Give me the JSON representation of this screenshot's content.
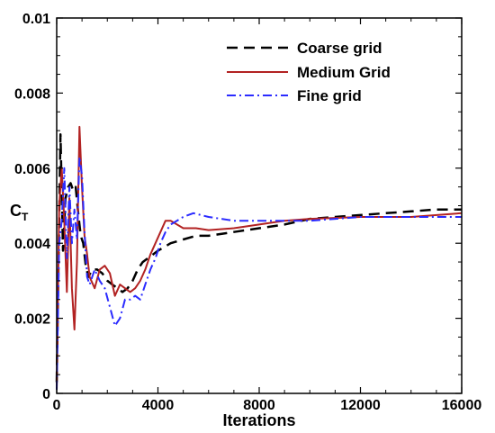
{
  "chart_data": {
    "type": "line",
    "title": "",
    "xlabel": "Iterations",
    "ylabel_main": "C",
    "ylabel_sub": "T",
    "xlim": [
      0,
      16000
    ],
    "ylim": [
      0,
      0.01
    ],
    "xticks": [
      0,
      4000,
      8000,
      12000,
      16000
    ],
    "xtick_labels": [
      "0",
      "4000",
      "8000",
      "12000",
      "16000"
    ],
    "yticks": [
      0,
      0.002,
      0.004,
      0.006,
      0.008,
      0.01
    ],
    "ytick_labels": [
      "0",
      "0.002",
      "0.004",
      "0.006",
      "0.008",
      "0.01"
    ],
    "grid": false,
    "legend_position": "top-right",
    "series": [
      {
        "name": "Coarse grid",
        "color": "#000000",
        "dash": "12,7",
        "x": [
          0,
          150,
          250,
          350,
          450,
          550,
          650,
          750,
          850,
          950,
          1050,
          1150,
          1250,
          1400,
          1600,
          1800,
          2000,
          2200,
          2400,
          2600,
          2800,
          3000,
          3200,
          3400,
          3600,
          3800,
          4000,
          4500,
          5000,
          5500,
          6000,
          7000,
          8000,
          9000,
          10000,
          11000,
          12000,
          13000,
          14000,
          15000,
          16000
        ],
        "y": [
          0.0003,
          0.0069,
          0.0038,
          0.0052,
          0.0055,
          0.0056,
          0.0054,
          0.0055,
          0.0048,
          0.0042,
          0.004,
          0.0034,
          0.0031,
          0.0033,
          0.0033,
          0.0032,
          0.003,
          0.0029,
          0.0028,
          0.0027,
          0.0028,
          0.003,
          0.0033,
          0.0035,
          0.0036,
          0.0037,
          0.0038,
          0.004,
          0.0041,
          0.0042,
          0.0042,
          0.0043,
          0.0044,
          0.0045,
          0.00465,
          0.0047,
          0.00475,
          0.0048,
          0.00485,
          0.0049,
          0.0049
        ]
      },
      {
        "name": "Medium Grid",
        "color": "#b22222",
        "dash": "",
        "x": [
          0,
          100,
          200,
          300,
          400,
          500,
          600,
          700,
          800,
          900,
          1000,
          1100,
          1200,
          1300,
          1500,
          1700,
          1900,
          2100,
          2300,
          2500,
          2700,
          2900,
          3100,
          3300,
          3500,
          3700,
          3900,
          4100,
          4300,
          4500,
          5000,
          5500,
          6000,
          7000,
          8000,
          9000,
          10000,
          12000,
          14000,
          16000
        ],
        "y": [
          0.0001,
          0.005,
          0.006,
          0.0046,
          0.0027,
          0.0052,
          0.0028,
          0.0017,
          0.0035,
          0.0071,
          0.0055,
          0.0042,
          0.0037,
          0.0031,
          0.0028,
          0.0033,
          0.0034,
          0.0032,
          0.0026,
          0.0029,
          0.0028,
          0.0027,
          0.0028,
          0.003,
          0.0033,
          0.0037,
          0.004,
          0.0043,
          0.0046,
          0.0046,
          0.0044,
          0.0044,
          0.00435,
          0.0044,
          0.0045,
          0.0046,
          0.00465,
          0.0047,
          0.0047,
          0.0048
        ]
      },
      {
        "name": "Fine grid",
        "color": "#2b2bff",
        "dash": "10,4,2,4",
        "x": [
          0,
          100,
          200,
          300,
          400,
          500,
          600,
          700,
          800,
          900,
          1000,
          1100,
          1200,
          1300,
          1500,
          1700,
          1900,
          2100,
          2300,
          2500,
          2700,
          2900,
          3100,
          3300,
          3500,
          3700,
          3900,
          4100,
          4300,
          4500,
          5000,
          5400,
          6000,
          7000,
          8000,
          9000,
          10000,
          12000,
          14000,
          16000
        ],
        "y": [
          0.0001,
          0.004,
          0.0046,
          0.006,
          0.0036,
          0.0055,
          0.004,
          0.0049,
          0.0041,
          0.0063,
          0.0058,
          0.0043,
          0.0031,
          0.0029,
          0.0033,
          0.003,
          0.0028,
          0.0023,
          0.0018,
          0.002,
          0.0025,
          0.0025,
          0.0026,
          0.0025,
          0.0029,
          0.0033,
          0.0036,
          0.004,
          0.0043,
          0.0045,
          0.0047,
          0.0048,
          0.0047,
          0.0046,
          0.0046,
          0.0046,
          0.0046,
          0.0047,
          0.0047,
          0.0047
        ]
      }
    ]
  }
}
